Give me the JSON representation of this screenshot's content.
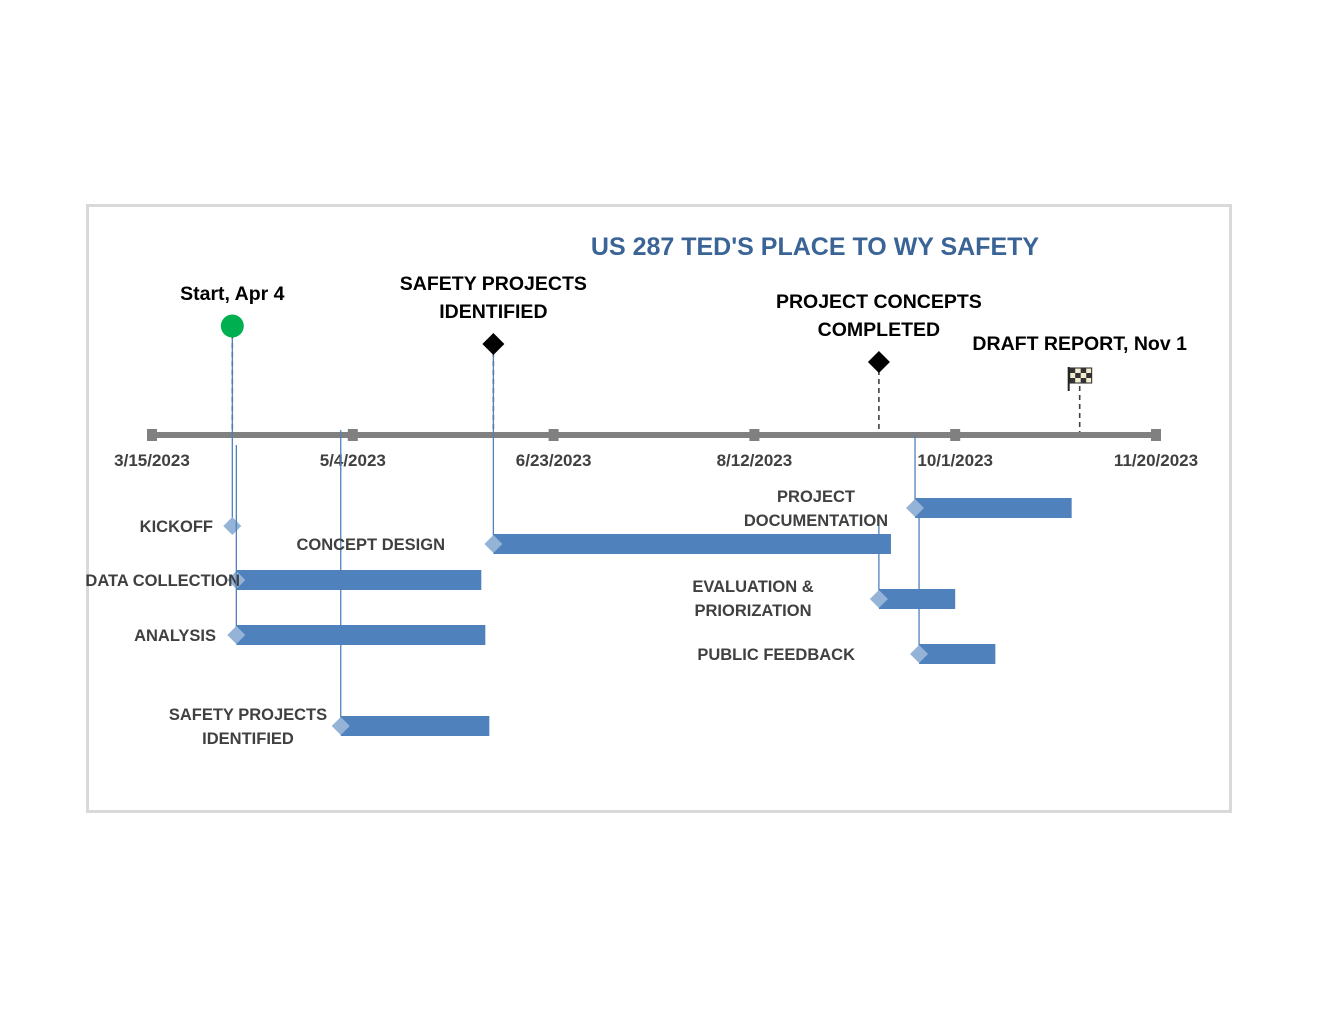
{
  "chart_data": {
    "type": "timeline",
    "title": "US 287 TED'S PLACE TO WY SAFETY",
    "axis": {
      "start": "2023-03-15",
      "end": "2023-11-20",
      "ticks": [
        "3/15/2023",
        "5/4/2023",
        "6/23/2023",
        "8/12/2023",
        "10/1/2023",
        "11/20/2023"
      ]
    },
    "milestones": [
      {
        "lines": [
          "Start, Apr 4"
        ],
        "date": "2023-04-04",
        "marker": "circle",
        "color": "#00b050"
      },
      {
        "lines": [
          "SAFETY PROJECTS",
          "IDENTIFIED"
        ],
        "date": "2023-06-08",
        "marker": "diamond",
        "color": "#000000"
      },
      {
        "lines": [
          "PROJECT CONCEPTS",
          "COMPLETED"
        ],
        "date": "2023-09-12",
        "marker": "diamond",
        "color": "#000000"
      },
      {
        "lines": [
          "DRAFT REPORT, Nov 1"
        ],
        "date": "2023-11-01",
        "marker": "flag",
        "color": "#000000"
      }
    ],
    "tasks": [
      {
        "lines": [
          "KICKOFF"
        ],
        "start": "2023-04-04",
        "end": "2023-04-04"
      },
      {
        "lines": [
          "DATA COLLECTION"
        ],
        "start": "2023-04-05",
        "end": "2023-06-05"
      },
      {
        "lines": [
          "ANALYSIS"
        ],
        "start": "2023-04-05",
        "end": "2023-06-06"
      },
      {
        "lines": [
          "SAFETY PROJECTS",
          "IDENTIFIED"
        ],
        "start": "2023-05-01",
        "end": "2023-06-07"
      },
      {
        "lines": [
          "CONCEPT DESIGN"
        ],
        "start": "2023-06-08",
        "end": "2023-09-15"
      },
      {
        "lines": [
          "EVALUATION &",
          "PRIORIZATION"
        ],
        "start": "2023-09-12",
        "end": "2023-10-01"
      },
      {
        "lines": [
          "PUBLIC FEEDBACK"
        ],
        "start": "2023-09-22",
        "end": "2023-10-11"
      },
      {
        "lines": [
          "PROJECT",
          "DOCUMENTATION"
        ],
        "start": "2023-09-21",
        "end": "2023-10-30"
      }
    ],
    "colors": {
      "bar": "#4f81bd",
      "marker": "#95b3d7",
      "axis": "#808080",
      "title": "#3b6496",
      "label": "#404040"
    }
  }
}
